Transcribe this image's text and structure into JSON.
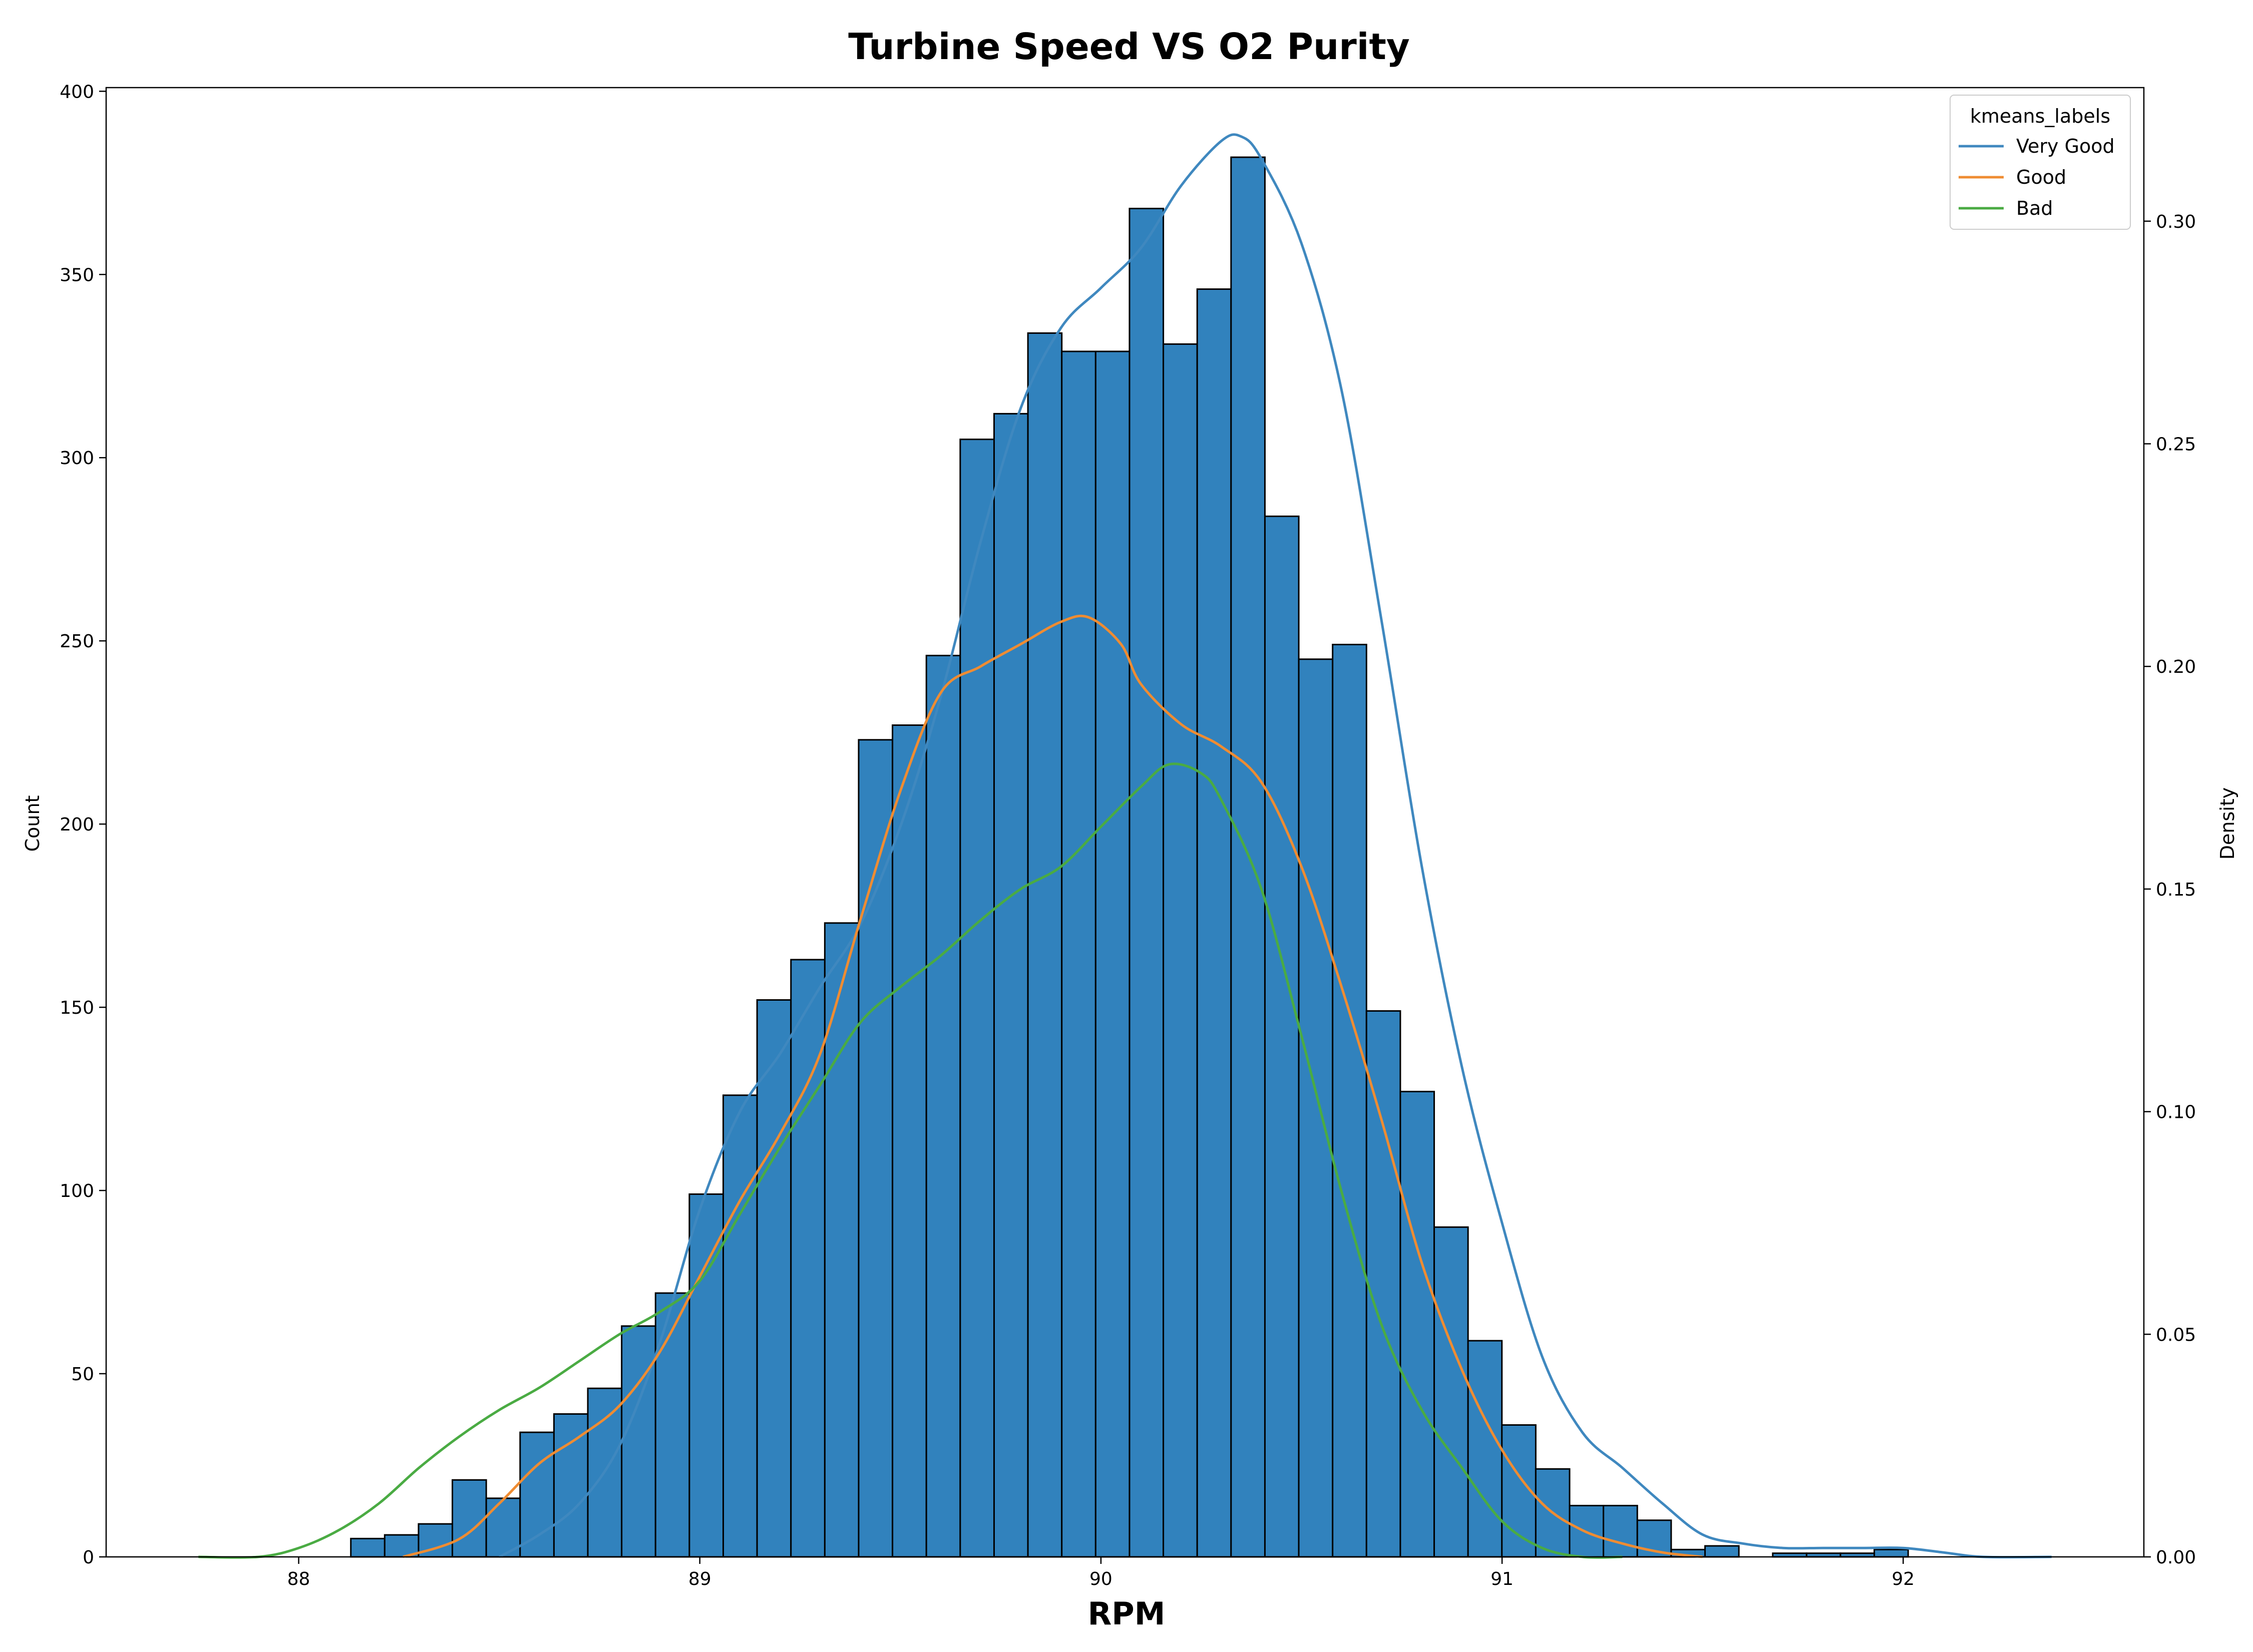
{
  "chart_data": {
    "type": "bar",
    "title": "Turbine Speed VS O2 Purity",
    "xlabel": "RPM",
    "ylabel": "Count",
    "y2label": "Density",
    "xlim": [
      87.52,
      92.6
    ],
    "ylim": [
      0,
      401
    ],
    "y2lim": [
      0,
      0.33
    ],
    "xticks": [
      "88",
      "89",
      "90",
      "91",
      "92"
    ],
    "xtick_values": [
      88,
      89,
      90,
      91,
      92
    ],
    "yticks": [
      "0",
      "50",
      "100",
      "150",
      "200",
      "250",
      "300",
      "350",
      "400"
    ],
    "ytick_values": [
      0,
      50,
      100,
      150,
      200,
      250,
      300,
      350,
      400
    ],
    "y2ticks": [
      "0.00",
      "0.05",
      "0.10",
      "0.15",
      "0.20",
      "0.25",
      "0.30"
    ],
    "y2tick_values": [
      0,
      0.05,
      0.1,
      0.15,
      0.2,
      0.25,
      0.3
    ],
    "grid": false,
    "legend_placement": "top-right",
    "bars": {
      "color": "#3182bd",
      "edge_color": "#000000",
      "bin_start": 88.13,
      "bin_width": 0.0844,
      "counts": [
        5,
        6,
        9,
        21,
        16,
        34,
        39,
        46,
        63,
        72,
        99,
        126,
        152,
        163,
        173,
        223,
        227,
        246,
        305,
        312,
        334,
        329,
        329,
        368,
        331,
        346,
        382,
        284,
        245,
        249,
        149,
        127,
        90,
        59,
        36,
        24,
        14,
        14,
        10,
        2,
        3,
        0,
        1,
        1,
        1,
        2
      ]
    },
    "legend_title": "kmeans_labels",
    "series": [
      {
        "name": "Very Good",
        "color": "#3f88bf",
        "x": [
          88.5,
          88.6,
          88.7,
          88.8,
          88.9,
          89.0,
          89.1,
          89.2,
          89.3,
          89.4,
          89.5,
          89.6,
          89.7,
          89.8,
          89.9,
          90.0,
          90.1,
          90.2,
          90.3,
          90.35,
          90.4,
          90.5,
          90.6,
          90.7,
          90.8,
          90.9,
          91.0,
          91.1,
          91.2,
          91.3,
          91.4,
          91.5,
          91.6,
          91.7,
          91.8,
          91.9,
          92.0,
          92.1,
          92.2,
          92.37
        ],
        "y": [
          0.0,
          0.005,
          0.012,
          0.025,
          0.048,
          0.078,
          0.1,
          0.113,
          0.128,
          0.142,
          0.164,
          0.193,
          0.228,
          0.258,
          0.276,
          0.285,
          0.294,
          0.308,
          0.318,
          0.319,
          0.314,
          0.295,
          0.262,
          0.21,
          0.155,
          0.11,
          0.075,
          0.045,
          0.028,
          0.02,
          0.012,
          0.005,
          0.003,
          0.002,
          0.002,
          0.002,
          0.002,
          0.001,
          0.0,
          0.0
        ]
      },
      {
        "name": "Good",
        "color": "#ef8c32",
        "x": [
          88.26,
          88.4,
          88.5,
          88.6,
          88.7,
          88.8,
          88.9,
          89.0,
          89.1,
          89.2,
          89.3,
          89.4,
          89.5,
          89.6,
          89.7,
          89.8,
          89.9,
          89.97,
          90.05,
          90.1,
          90.2,
          90.3,
          90.4,
          90.5,
          90.6,
          90.7,
          90.8,
          90.9,
          91.0,
          91.1,
          91.2,
          91.3,
          91.4,
          91.5
        ],
        "y": [
          0.0,
          0.004,
          0.012,
          0.021,
          0.027,
          0.034,
          0.046,
          0.063,
          0.08,
          0.095,
          0.113,
          0.143,
          0.172,
          0.194,
          0.2,
          0.205,
          0.21,
          0.211,
          0.205,
          0.196,
          0.187,
          0.182,
          0.174,
          0.155,
          0.128,
          0.098,
          0.066,
          0.042,
          0.024,
          0.012,
          0.006,
          0.003,
          0.001,
          0.0
        ]
      },
      {
        "name": "Bad",
        "color": "#4aab43",
        "x": [
          87.75,
          87.9,
          88.0,
          88.1,
          88.2,
          88.3,
          88.4,
          88.5,
          88.6,
          88.7,
          88.8,
          88.9,
          89.0,
          89.1,
          89.2,
          89.3,
          89.4,
          89.5,
          89.6,
          89.7,
          89.8,
          89.9,
          90.0,
          90.1,
          90.17,
          90.25,
          90.3,
          90.4,
          90.5,
          90.6,
          90.7,
          90.8,
          90.9,
          91.0,
          91.1,
          91.2,
          91.3
        ],
        "y": [
          0.0,
          0.0,
          0.002,
          0.006,
          0.012,
          0.02,
          0.027,
          0.033,
          0.038,
          0.044,
          0.05,
          0.055,
          0.062,
          0.077,
          0.092,
          0.106,
          0.12,
          0.128,
          0.135,
          0.143,
          0.15,
          0.155,
          0.164,
          0.173,
          0.178,
          0.176,
          0.17,
          0.15,
          0.117,
          0.082,
          0.052,
          0.033,
          0.02,
          0.008,
          0.002,
          0.0,
          0.0
        ]
      }
    ]
  }
}
